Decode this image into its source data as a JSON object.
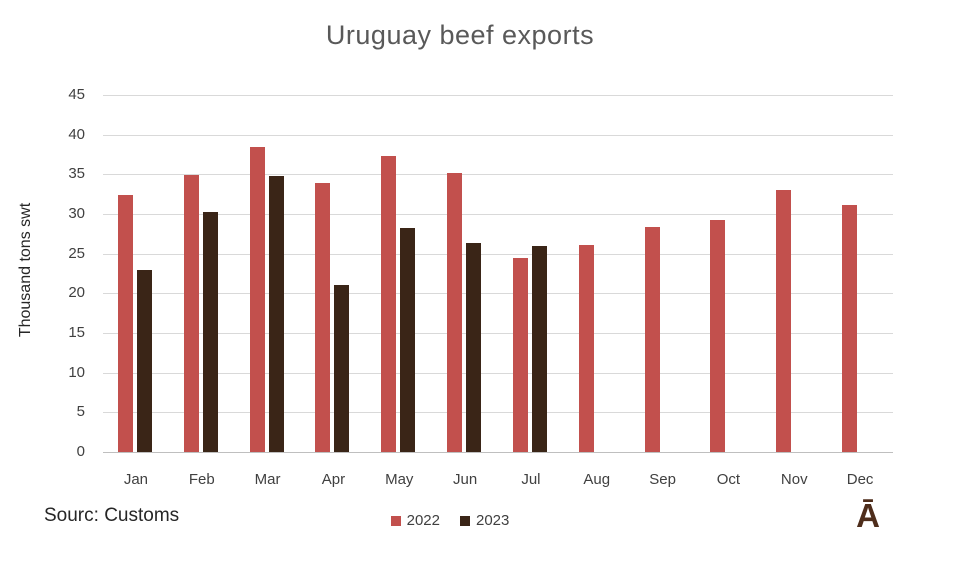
{
  "title": "Uruguay beef exports",
  "source_text": "Sourc: Customs",
  "logo_text": "Ā",
  "colors": {
    "series_2022": "#c2504d",
    "series_2023": "#3a2517",
    "gridline": "#d9d9d9",
    "axis_baseline": "#bfbfbf",
    "title_text": "#595959",
    "tick_text": "#404040",
    "logo_brown": "#4e2d1b"
  },
  "chart_data": {
    "type": "bar",
    "title": "Uruguay beef exports",
    "xlabel": "",
    "ylabel": "Thousand tons swt",
    "categories": [
      "Jan",
      "Feb",
      "Mar",
      "Apr",
      "May",
      "Jun",
      "Jul",
      "Aug",
      "Sep",
      "Oct",
      "Nov",
      "Dec"
    ],
    "series": [
      {
        "name": "2022",
        "color": "#c2504d",
        "values": [
          32.4,
          34.9,
          38.5,
          33.9,
          37.3,
          35.2,
          24.4,
          26.1,
          28.4,
          29.2,
          33.0,
          31.1
        ]
      },
      {
        "name": "2023",
        "color": "#3a2517",
        "values": [
          23.0,
          30.3,
          34.8,
          21.1,
          28.2,
          26.3,
          26.0,
          null,
          null,
          null,
          null,
          null
        ]
      }
    ],
    "ylim": [
      0,
      45
    ],
    "yticks": [
      0,
      5,
      10,
      15,
      20,
      25,
      30,
      35,
      40,
      45
    ],
    "grid": true,
    "legend_position": "bottom"
  }
}
